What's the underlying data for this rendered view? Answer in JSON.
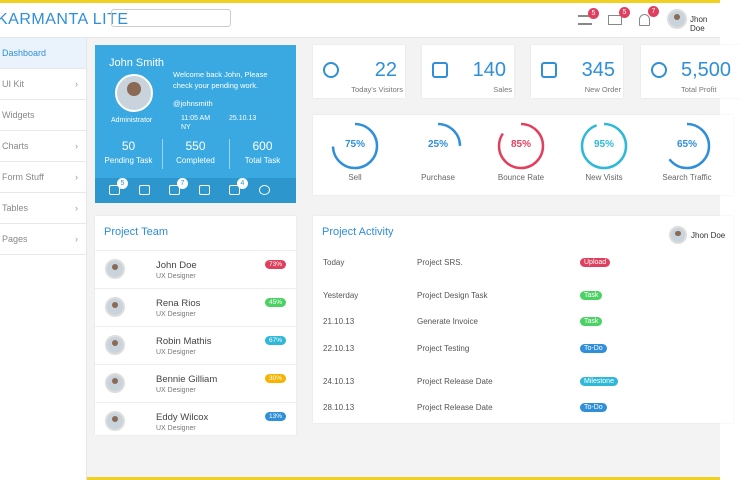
{
  "header": {
    "logo": "KARMANTA LITE",
    "badges": [
      "5",
      "5",
      "7"
    ],
    "user": "Jhon Doe"
  },
  "sidebar": [
    "Dashboard",
    "UI Kit",
    "Widgets",
    "Charts",
    "Form Stuff",
    "Tables",
    "Pages"
  ],
  "profile": {
    "name": "John Smith",
    "role": "Administrator",
    "welcome": "Welcome back John, Please check your pending work.",
    "handle": "@johnsmith",
    "time": "11:05 AM",
    "date": "25.10.13",
    "location": "NY",
    "stats": [
      {
        "value": "50",
        "label": "Pending Task"
      },
      {
        "value": "550",
        "label": "Completed"
      },
      {
        "value": "600",
        "label": "Total Task"
      }
    ],
    "icon_badges": [
      "5",
      "7",
      "4"
    ]
  },
  "stat_cards": [
    {
      "value": "22",
      "label": "Today's Visitors"
    },
    {
      "value": "140",
      "label": "Sales"
    },
    {
      "value": "345",
      "label": "New Order"
    },
    {
      "value": "5,500",
      "label": "Total Profit"
    }
  ],
  "gauges": [
    {
      "value": 75,
      "label": "75%",
      "name": "Sell",
      "color": "#2f8fd8"
    },
    {
      "value": 25,
      "label": "25%",
      "name": "Purchase",
      "color": "#2f8fd8"
    },
    {
      "value": 85,
      "label": "85%",
      "name": "Bounce Rate",
      "color": "#e0405e"
    },
    {
      "value": 95,
      "label": "95%",
      "name": "New Visits",
      "color": "#2fb8d8"
    },
    {
      "value": 65,
      "label": "65%",
      "name": "Search Traffic",
      "color": "#2f8fd8"
    }
  ],
  "team": {
    "title": "Project Team",
    "members": [
      {
        "name": "John Doe",
        "role": "UX Designer",
        "badge": "73%",
        "color": "#e0405e"
      },
      {
        "name": "Rena Rios",
        "role": "UX Designer",
        "badge": "45%",
        "color": "#4cd164"
      },
      {
        "name": "Robin Mathis",
        "role": "UX Designer",
        "badge": "67%",
        "color": "#2fb8d8"
      },
      {
        "name": "Bennie Gilliam",
        "role": "UX Designer",
        "badge": "30%",
        "color": "#f4b400"
      },
      {
        "name": "Eddy Wilcox",
        "role": "UX Designer",
        "badge": "13%",
        "color": "#2f8fd8"
      }
    ]
  },
  "activity": {
    "title": "Project Activity",
    "rows": [
      {
        "date": "Today",
        "project": "Project SRS.",
        "tag": "Upload",
        "color": "#e0405e"
      },
      {
        "date": "Yesterday",
        "project": "Project Design Task",
        "tag": "Task",
        "color": "#4cd164"
      },
      {
        "date": "21.10.13",
        "project": "Generate Invoice",
        "tag": "Task",
        "color": "#4cd164"
      },
      {
        "date": "22.10.13",
        "project": "Project Testing",
        "tag": "To-Do",
        "color": "#2f8fd8"
      },
      {
        "date": "24.10.13",
        "project": "Project Release Date",
        "tag": "Milestone",
        "color": "#2fb8d8"
      },
      {
        "date": "28.10.13",
        "project": "Project Release Date",
        "tag": "To-Do",
        "color": "#2f8fd8"
      }
    ]
  }
}
